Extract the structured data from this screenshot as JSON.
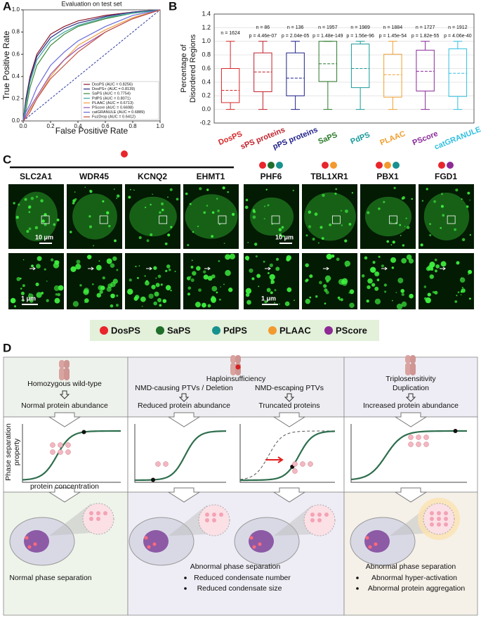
{
  "panel_labels": [
    "A",
    "B",
    "C",
    "D"
  ],
  "chart_data": [
    {
      "type": "line",
      "title": "Evaluation on test set",
      "xlabel": "False Positive Rate",
      "ylabel": "True Positive Rate",
      "x": [
        0,
        0.02,
        0.05,
        0.1,
        0.2,
        0.3,
        0.4,
        0.6,
        0.8,
        1
      ],
      "series": [
        {
          "name": "DosPS (AUC = 0.8256)",
          "color": "#8b1a2b",
          "values": [
            0,
            0.2,
            0.4,
            0.6,
            0.78,
            0.85,
            0.9,
            0.95,
            0.98,
            1
          ]
        },
        {
          "name": "DosPS+ (AUC = 0.8139)",
          "color": "#2a2a80",
          "values": [
            0,
            0.18,
            0.38,
            0.58,
            0.75,
            0.83,
            0.88,
            0.94,
            0.98,
            1
          ]
        },
        {
          "name": "SaPS (AUC = 0.7754)",
          "color": "#3a8a3a",
          "values": [
            0,
            0.1,
            0.3,
            0.5,
            0.68,
            0.78,
            0.85,
            0.92,
            0.97,
            1
          ]
        },
        {
          "name": "PdPS (AUC = 0.8071)",
          "color": "#3aa0a0",
          "values": [
            0,
            0.15,
            0.35,
            0.55,
            0.72,
            0.8,
            0.86,
            0.93,
            0.97,
            1
          ]
        },
        {
          "name": "PLAAC (AUC = 0.6713)",
          "color": "#f0a040",
          "values": [
            0,
            0.05,
            0.1,
            0.2,
            0.4,
            0.55,
            0.68,
            0.82,
            0.93,
            1
          ]
        },
        {
          "name": "PScore (AUC = 0.6698)",
          "color": "#9a50b0",
          "values": [
            0,
            0.05,
            0.12,
            0.22,
            0.42,
            0.55,
            0.65,
            0.8,
            0.92,
            1
          ]
        },
        {
          "name": "catGRANULE (AUC = 0.6889)",
          "color": "#6a6ad8",
          "values": [
            0,
            0.08,
            0.15,
            0.3,
            0.5,
            0.62,
            0.72,
            0.85,
            0.95,
            1
          ]
        },
        {
          "name": "FuzDrop (AUC = 0.6412)",
          "color": "#c05040",
          "values": [
            0,
            0.03,
            0.08,
            0.2,
            0.38,
            0.5,
            0.62,
            0.8,
            0.92,
            1
          ]
        }
      ],
      "xlim": [
        0,
        1
      ],
      "ylim": [
        0,
        1
      ],
      "xticks": [
        {
          "value": 0,
          "label": "0.0"
        },
        0.2,
        0.4,
        0.6,
        0.8,
        {
          "value": 1,
          "label": "1.0"
        }
      ],
      "yticks": [
        {
          "value": 0,
          "label": "0.0"
        },
        0.2,
        0.4,
        0.6,
        0.8,
        {
          "value": 1,
          "label": "1.0"
        }
      ],
      "legend": "lower right"
    },
    {
      "type": "box",
      "ylabel": [
        "Percentage of",
        "Disordered Regions"
      ],
      "categories": [
        "DosPS",
        "sPS proteins",
        "pPS proteins",
        "SaPS",
        "PdPS",
        "PLAAC",
        "PScore",
        "catGRANULE"
      ],
      "colors": [
        "#d62728",
        "#c0202a",
        "#20208a",
        "#2a7a2a",
        "#1a9a9a",
        "#f0a030",
        "#8a2a9a",
        "#30c0e0"
      ],
      "min": [
        0,
        0,
        0,
        0,
        0,
        0,
        0,
        0
      ],
      "q1": [
        0.1,
        0.26,
        0.2,
        0.41,
        0.32,
        0.18,
        0.27,
        0.19
      ],
      "center": [
        0.28,
        0.55,
        0.46,
        0.67,
        0.6,
        0.51,
        0.56,
        0.53
      ],
      "q3": [
        0.6,
        0.83,
        0.83,
        1.0,
        0.96,
        0.81,
        0.87,
        0.89
      ],
      "max": [
        1.0,
        1.0,
        1.0,
        1.0,
        1.0,
        1.0,
        1.0,
        1.0
      ],
      "n_labels": [
        "n = 1624",
        "n = 86",
        "n = 136",
        "n = 1957",
        "n = 1989",
        "n = 1884",
        "n = 1727",
        "n = 1912"
      ],
      "p_labels": [
        null,
        "p = 4.46e-07",
        "p = 2.04e-05",
        "p = 1.48e-149",
        "p = 1.56e-96",
        "p = 1.45e-54",
        "p = 1.82e-55",
        "p = 4.06e-40"
      ],
      "ylim": [
        -0.2,
        1.4
      ],
      "yticks": [
        -0.2,
        {
          "value": 0,
          "label": "0.0"
        },
        0.2,
        0.4,
        0.6,
        0.8,
        {
          "value": 1,
          "label": "1.0"
        },
        1.2,
        1.4
      ],
      "grid": true
    }
  ],
  "panel_c": {
    "proteins": [
      "SLC2A1",
      "WDR45",
      "KCNQ2",
      "EHMT1",
      "PHF6",
      "TBL1XR1",
      "PBX1",
      "FGD1"
    ],
    "scale_bars": [
      "10 μm",
      "1 μm",
      "10 μm",
      "1 μm"
    ],
    "legend": [
      {
        "name": "DosPS",
        "color": "#e8262b"
      },
      {
        "name": "SaPS",
        "color": "#1f6e2a"
      },
      {
        "name": "PdPS",
        "color": "#17928f"
      },
      {
        "name": "PLAAC",
        "color": "#f29a2e"
      },
      {
        "name": "PScore",
        "color": "#8e2a94"
      }
    ]
  },
  "panel_d": {
    "wild_type": "Homozygous wild-type",
    "normal_abundance": "Normal protein abundance",
    "haplo": "Haploinsufficiency",
    "nmd_causing": "NMD-causing PTVs / Deletion",
    "nmd_escaping": "NMD-escaping PTVs",
    "reduced_abundance": "Reduced protein abundance",
    "truncated": "Truncated proteins",
    "triplo": "Triplosensitivity",
    "duplication": "Duplication",
    "increased_abundance": "Increased protein abundance",
    "y_axis": [
      "Phase separation",
      "property"
    ],
    "x_axis": "protein concentration",
    "normal_ps": "Normal phase separation",
    "abnormal_ps_1": "Abnormal phase separation",
    "haplo_effects": [
      "Reduced condensate number",
      "Reduced condensate size"
    ],
    "abnormal_ps_2": "Abnormal phase separation",
    "triplo_effects": [
      "Abnormal hyper-activation",
      "Abnormal protein aggregation"
    ]
  }
}
